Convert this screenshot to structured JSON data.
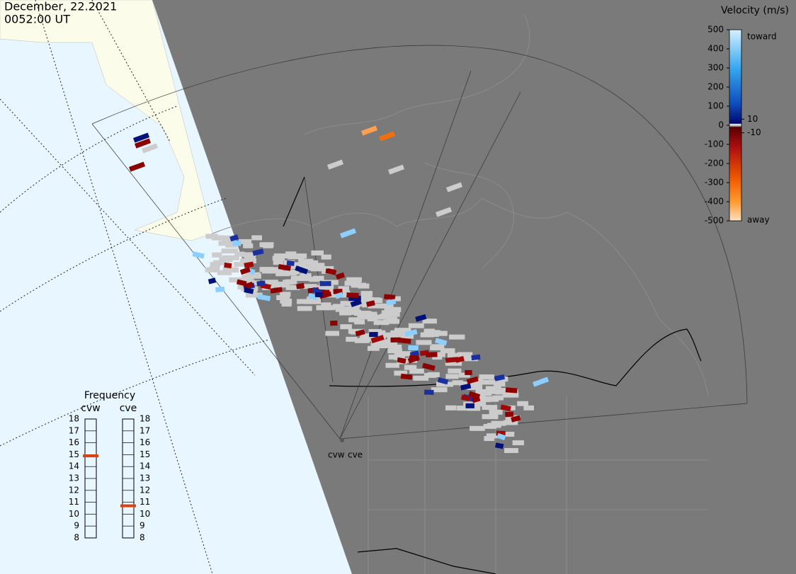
{
  "header": {
    "date": "December, 22.2021",
    "time": "0052:00 UT"
  },
  "velocity_scale": {
    "title": "Velocity (m/s)",
    "lim": [
      -500,
      500
    ],
    "ticks": [
      500,
      400,
      300,
      200,
      100,
      0,
      -100,
      -200,
      -300,
      -400,
      -500
    ],
    "inner_ticks": [
      10,
      -10
    ],
    "top_label": "toward",
    "bottom_label": "away"
  },
  "frequency": {
    "title": "Frequency",
    "lim": [
      8,
      18
    ],
    "ticks": [
      18,
      17,
      16,
      15,
      14,
      13,
      12,
      11,
      10,
      9,
      8
    ],
    "radars": [
      {
        "name": "cvw",
        "value": 14.9
      },
      {
        "name": "cve",
        "value": 10.7
      }
    ]
  },
  "map_labels": [
    "cvw",
    "cve"
  ]
}
